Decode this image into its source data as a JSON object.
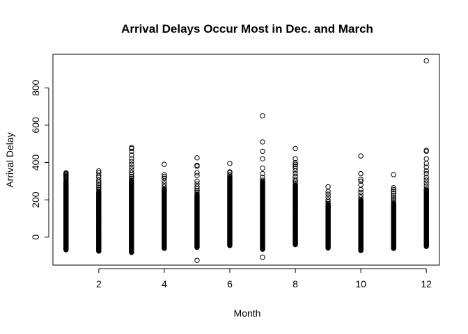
{
  "chart_data": {
    "type": "scatter",
    "title": "Arrival Delays Occur Most in Dec. and March",
    "xlabel": "Month",
    "ylabel": "Arrival Delay",
    "xlim": [
      0.6,
      12.4
    ],
    "ylim": [
      -150,
      980
    ],
    "xticks": [
      2,
      4,
      6,
      8,
      10,
      12
    ],
    "yticks": [
      0,
      200,
      400,
      600,
      800
    ],
    "grid": false,
    "legend": "none",
    "marker": "open-circle",
    "series": [
      {
        "columns": [
          {
            "x": 1,
            "band": [
              -68,
              300
            ],
            "points": [
              305,
              315,
              320,
              325,
              330,
              335,
              340,
              345
            ]
          },
          {
            "x": 2,
            "band": [
              -75,
              240
            ],
            "points": [
              245,
              255,
              265,
              275,
              285,
              295,
              305,
              320,
              330,
              345,
              355
            ]
          },
          {
            "x": 3,
            "band": [
              -82,
              300
            ],
            "points": [
              305,
              315,
              325,
              335,
              345,
              360,
              375,
              390,
              405,
              420,
              440,
              460,
              475,
              480
            ]
          },
          {
            "x": 4,
            "band": [
              -60,
              255
            ],
            "points": [
              260,
              270,
              285,
              300,
              315,
              325,
              335,
              390
            ]
          },
          {
            "x": 5,
            "band": [
              -55,
              225
            ],
            "points": [
              -125,
              230,
              240,
              250,
              260,
              270,
              285,
              300,
              330,
              345,
              380,
              385,
              425
            ]
          },
          {
            "x": 6,
            "band": [
              -45,
              320
            ],
            "points": [
              325,
              335,
              345,
              350,
              395
            ]
          },
          {
            "x": 7,
            "band": [
              -65,
              300
            ],
            "points": [
              -108,
              305,
              320,
              340,
              370,
              420,
              460,
              510,
              650
            ]
          },
          {
            "x": 8,
            "band": [
              -40,
              275
            ],
            "points": [
              280,
              290,
              300,
              310,
              325,
              340,
              355,
              370,
              380,
              390,
              400,
              420,
              475
            ]
          },
          {
            "x": 9,
            "band": [
              -58,
              175
            ],
            "points": [
              180,
              190,
              200,
              215,
              230,
              245,
              270
            ]
          },
          {
            "x": 10,
            "band": [
              -72,
              195
            ],
            "points": [
              200,
              210,
              225,
              240,
              255,
              280,
              300,
              310,
              340,
              435
            ]
          },
          {
            "x": 11,
            "band": [
              -60,
              180
            ],
            "points": [
              185,
              195,
              205,
              215,
              225,
              235,
              245,
              255,
              265,
              335
            ]
          },
          {
            "x": 12,
            "band": [
              -50,
              255
            ],
            "points": [
              260,
              275,
              290,
              305,
              320,
              340,
              355,
              375,
              395,
              420,
              460,
              465,
              945
            ]
          }
        ]
      }
    ]
  }
}
